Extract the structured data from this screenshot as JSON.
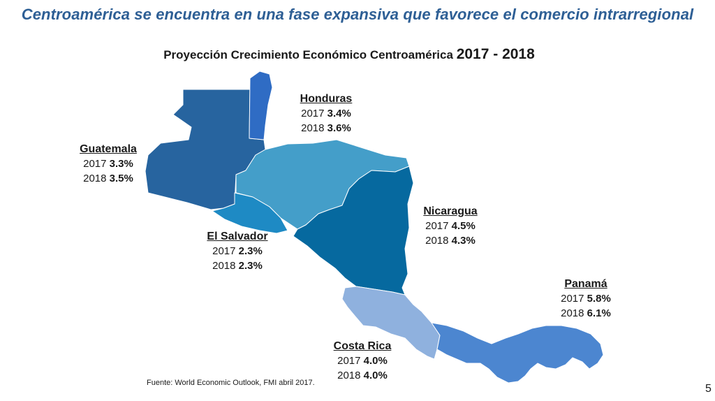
{
  "headline": "Centroamérica se encuentra en una fase expansiva que favorece el comercio intrarregional",
  "map_title": {
    "text": "Proyección Crecimiento Económico Centroamérica",
    "years": "2017 - 2018"
  },
  "countries": {
    "guatemala": {
      "name": "Guatemala",
      "y1_label": "2017",
      "y1_value": "3.3%",
      "y2_label": "2018",
      "y2_value": "3.5%",
      "color": "#27649f"
    },
    "belize": {
      "color": "#2f6cc4"
    },
    "honduras": {
      "name": "Honduras",
      "y1_label": "2017",
      "y1_value": "3.4%",
      "y2_label": "2018",
      "y2_value": "3.6%",
      "color": "#449ec9"
    },
    "el_salvador": {
      "name": "El Salvador",
      "y1_label": "2017",
      "y1_value": "2.3%",
      "y2_label": "2018",
      "y2_value": "2.3%",
      "color": "#1e8ac4"
    },
    "nicaragua": {
      "name": "Nicaragua",
      "y1_label": "2017",
      "y1_value": "4.5%",
      "y2_label": "2018",
      "y2_value": "4.3%",
      "color": "#06699f"
    },
    "costa_rica": {
      "name": "Costa Rica",
      "y1_label": "2017",
      "y1_value": "4.0%",
      "y2_label": "2018",
      "y2_value": "4.0%",
      "color": "#8fb1de"
    },
    "panama": {
      "name": "Panamá",
      "y1_label": "2017",
      "y1_value": "5.8%",
      "y2_label": "2018",
      "y2_value": "6.1%",
      "color": "#4c86d0"
    }
  },
  "source": "Fuente:  World Economic Outlook, FMI abril 2017.",
  "page_number": "5"
}
